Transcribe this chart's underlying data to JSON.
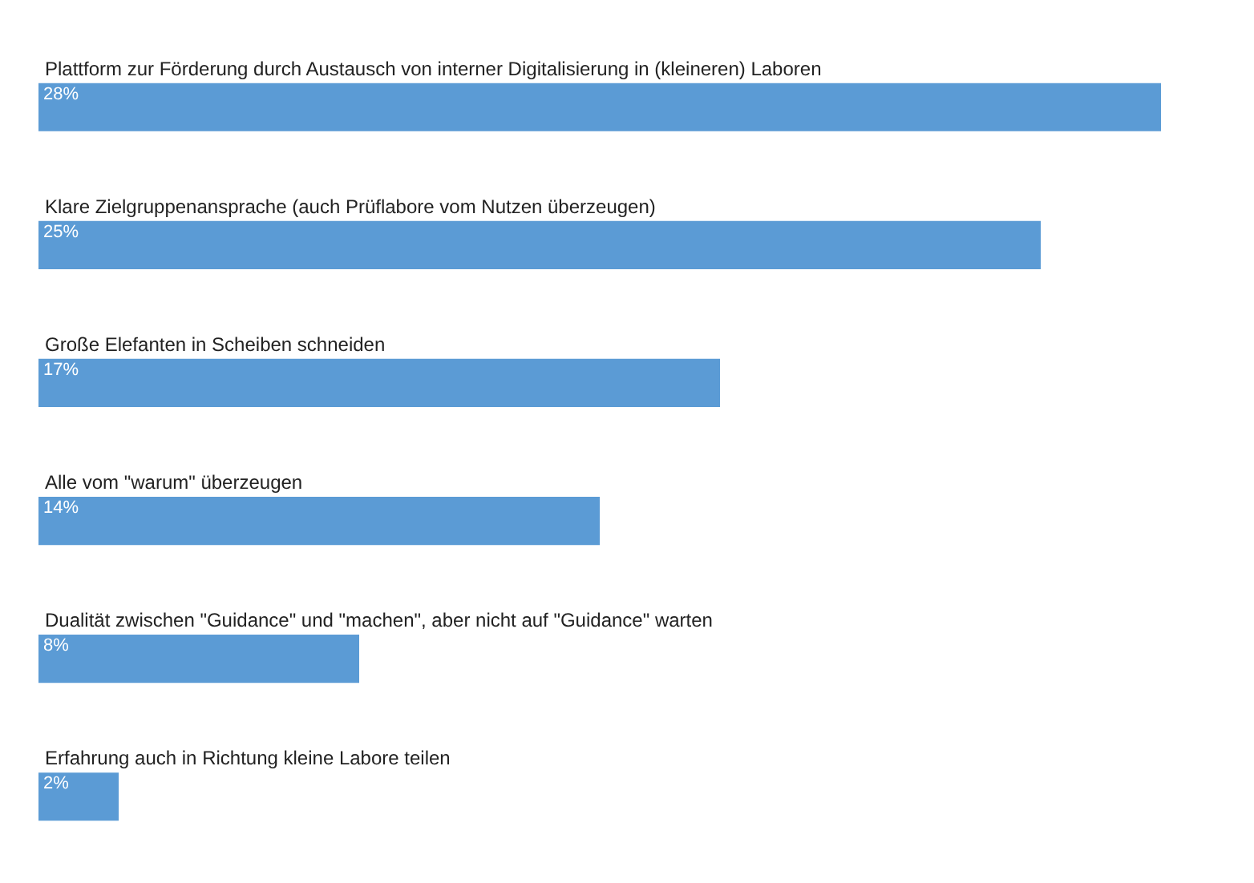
{
  "chart_data": {
    "type": "bar",
    "orientation": "horizontal",
    "categories": [
      "Plattform zur Förderung durch Austausch von interner Digitalisierung in (kleineren) Laboren",
      "Klare Zielgruppenansprache (auch Prüflabore vom Nutzen überzeugen)",
      "Große Elefanten in Scheiben schneiden",
      "Alle  vom \"warum\" überzeugen",
      "Dualität zwischen \"Guidance\" und \"machen\", aber nicht auf \"Guidance\" warten",
      "Erfahrung auch in Richtung kleine Labore teilen"
    ],
    "values": [
      28,
      25,
      17,
      14,
      8,
      2
    ],
    "color": "#5b9bd5",
    "value_labels": [
      "28%",
      "25%",
      "17%",
      "14%",
      "8%",
      "2%"
    ]
  }
}
